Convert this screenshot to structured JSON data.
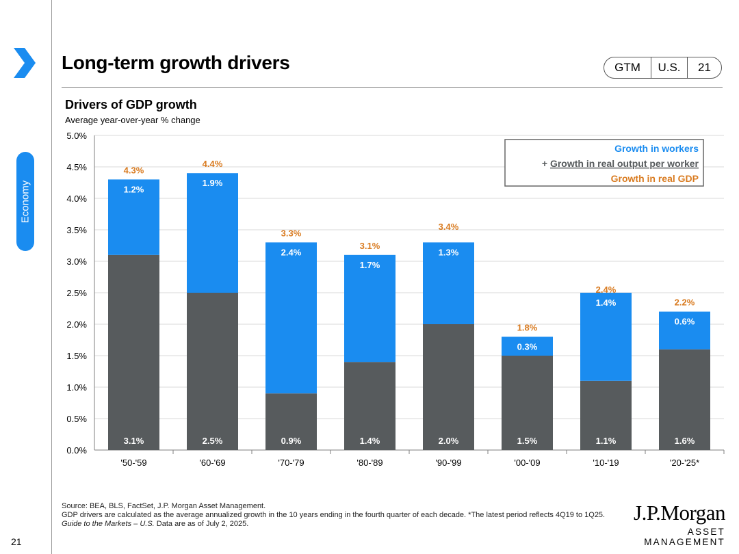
{
  "header": {
    "title": "Long-term growth drivers",
    "badge": {
      "guide": "GTM",
      "region": "U.S.",
      "page": "21"
    }
  },
  "sidebar": {
    "section_label": "Economy"
  },
  "colors": {
    "workers": "#1a8cf0",
    "output": "#575b5d",
    "gdp": "#d97b20",
    "grid": "#d9d9d9",
    "section": "#1a8cf0"
  },
  "chart_data": {
    "type": "bar",
    "stacked": true,
    "title": "Drivers of GDP growth",
    "subtitle": "Average year-over-year % change",
    "categories": [
      "'50-'59",
      "'60-'69",
      "'70-'79",
      "'80-'89",
      "'90-'99",
      "'00-'09",
      "'10-'19",
      "'20-'25*"
    ],
    "series": [
      {
        "name": "Growth in real output per worker",
        "values": [
          3.1,
          2.5,
          0.9,
          1.4,
          2.0,
          1.5,
          1.1,
          1.6
        ],
        "labels": [
          "3.1%",
          "2.5%",
          "0.9%",
          "1.4%",
          "2.0%",
          "1.5%",
          "1.1%",
          "1.6%"
        ]
      },
      {
        "name": "Growth in workers",
        "values": [
          1.2,
          1.9,
          2.4,
          1.7,
          1.3,
          0.3,
          1.4,
          0.6
        ],
        "labels": [
          "1.2%",
          "1.9%",
          "2.4%",
          "1.7%",
          "1.3%",
          "0.3%",
          "1.4%",
          "0.6%"
        ]
      }
    ],
    "totals": {
      "name": "Growth in real GDP",
      "values": [
        4.3,
        4.4,
        3.3,
        3.1,
        3.4,
        1.8,
        2.4,
        2.2
      ],
      "labels": [
        "4.3%",
        "4.4%",
        "3.3%",
        "3.1%",
        "3.4%",
        "1.8%",
        "2.4%",
        "2.2%"
      ]
    },
    "ylim": [
      0,
      5
    ],
    "yticks": [
      "0.0%",
      "0.5%",
      "1.0%",
      "1.5%",
      "2.0%",
      "2.5%",
      "3.0%",
      "3.5%",
      "4.0%",
      "4.5%",
      "5.0%"
    ],
    "legend": {
      "position": "top-right",
      "line1": "Growth in workers",
      "line2_prefix": "+ ",
      "line2": "Growth in real output per worker",
      "line3": "Growth in real GDP"
    }
  },
  "footer": {
    "source": "Source: BEA, BLS, FactSet, J.P. Morgan Asset Management.",
    "note": "GDP drivers are calculated as the average annualized growth in the 10 years ending in the fourth quarter of each decade. *The latest period reflects 4Q19 to 1Q25.",
    "guide_italic": "Guide to the Markets – U.S.",
    "asof": " Data are as of July 2, 2025."
  },
  "page_number": "21",
  "logo": {
    "line1": "J.P.Morgan",
    "line2": "ASSET MANAGEMENT"
  }
}
